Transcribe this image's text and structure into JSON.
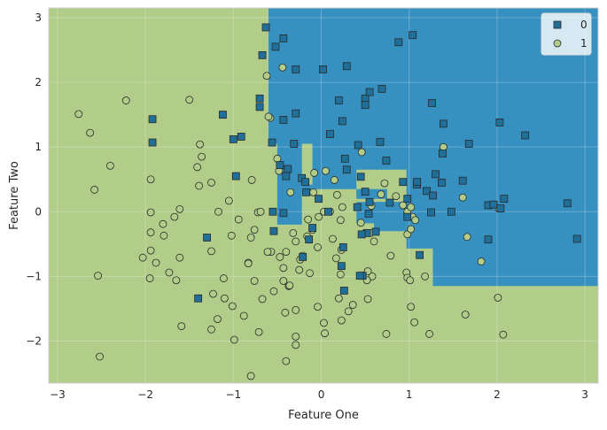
{
  "colors": {
    "class0": "#3690c0",
    "class1": "#b1cd89",
    "marker0": "#1f6f99",
    "marker1": "#b1cd89",
    "edge": "#2a2a2a"
  },
  "chart_data": {
    "type": "scatter",
    "title": "",
    "xlabel": "Feature One",
    "ylabel": "Feature Two",
    "xlim": [
      -3.1,
      3.15
    ],
    "ylim": [
      -2.65,
      3.15
    ],
    "xticks": [
      -3,
      -2,
      -1,
      0,
      1,
      2,
      3
    ],
    "yticks": [
      -2,
      -1,
      0,
      1,
      2,
      3
    ],
    "grid": true,
    "legend_position": "top-right",
    "decision_regions": {
      "background_class": "1",
      "class0_polygons": [
        [
          [
            -0.6,
            3.15
          ],
          [
            3.15,
            3.15
          ],
          [
            3.15,
            -1.15
          ],
          [
            1.27,
            -1.15
          ],
          [
            1.27,
            -0.57
          ],
          [
            0.97,
            -0.57
          ],
          [
            0.97,
            0.65
          ],
          [
            0.4,
            0.65
          ],
          [
            0.4,
            0.35
          ],
          [
            -0.1,
            0.35
          ],
          [
            -0.1,
            1.05
          ],
          [
            -0.6,
            1.05
          ]
        ],
        [
          [
            -0.5,
            1.05
          ],
          [
            -0.22,
            1.05
          ],
          [
            -0.22,
            -0.2
          ],
          [
            -0.5,
            -0.2
          ]
        ],
        [
          [
            -0.22,
            0.42
          ],
          [
            -0.1,
            0.42
          ],
          [
            -0.1,
            0.26
          ],
          [
            -0.22,
            0.26
          ]
        ],
        [
          [
            0.4,
            0.35
          ],
          [
            0.75,
            0.35
          ],
          [
            0.75,
            0.2
          ],
          [
            0.4,
            0.2
          ]
        ],
        [
          [
            0.4,
            0.15
          ],
          [
            0.97,
            0.15
          ],
          [
            0.97,
            -0.18
          ],
          [
            0.4,
            -0.18
          ]
        ],
        [
          [
            0.6,
            0.15
          ],
          [
            0.97,
            0.15
          ],
          [
            0.97,
            -0.3
          ],
          [
            0.6,
            -0.3
          ]
        ]
      ]
    },
    "series": [
      {
        "name": "0",
        "marker": "square",
        "points": [
          [
            -0.63,
            2.85
          ],
          [
            -0.67,
            2.42
          ],
          [
            -0.52,
            2.55
          ],
          [
            -0.43,
            2.68
          ],
          [
            -0.29,
            2.2
          ],
          [
            0.02,
            2.2
          ],
          [
            0.29,
            2.25
          ],
          [
            1.04,
            2.73
          ],
          [
            0.88,
            2.62
          ],
          [
            -0.7,
            1.75
          ],
          [
            -0.7,
            1.62
          ],
          [
            -0.56,
            1.07
          ],
          [
            -0.43,
            1.42
          ],
          [
            -0.29,
            1.52
          ],
          [
            0.2,
            1.72
          ],
          [
            0.5,
            1.75
          ],
          [
            0.55,
            1.85
          ],
          [
            0.69,
            1.9
          ],
          [
            0.5,
            1.65
          ],
          [
            1.26,
            1.68
          ],
          [
            1.39,
            1.36
          ],
          [
            0.24,
            1.4
          ],
          [
            0.1,
            1.2
          ],
          [
            2.03,
            1.38
          ],
          [
            2.32,
            1.18
          ],
          [
            -1.92,
            1.43
          ],
          [
            -1.92,
            1.07
          ],
          [
            -1.12,
            1.5
          ],
          [
            -1.0,
            1.12
          ],
          [
            -0.91,
            1.16
          ],
          [
            -0.31,
            1.05
          ],
          [
            0.27,
            0.82
          ],
          [
            0.67,
            1.08
          ],
          [
            0.74,
            0.79
          ],
          [
            0.42,
            1.03
          ],
          [
            1.38,
            0.9
          ],
          [
            1.68,
            1.05
          ],
          [
            1.61,
            0.48
          ],
          [
            1.3,
            0.58
          ],
          [
            1.37,
            0.45
          ],
          [
            1.2,
            0.32
          ],
          [
            1.27,
            0.25
          ],
          [
            1.09,
            0.42
          ],
          [
            1.09,
            0.46
          ],
          [
            0.93,
            0.46
          ],
          [
            0.29,
            0.65
          ],
          [
            -0.47,
            0.72
          ],
          [
            -0.38,
            0.66
          ],
          [
            -0.4,
            0.55
          ],
          [
            -0.22,
            0.52
          ],
          [
            -0.18,
            0.46
          ],
          [
            -0.17,
            0.3
          ],
          [
            0.45,
            0.54
          ],
          [
            0.5,
            0.31
          ],
          [
            -0.03,
            0.2
          ],
          [
            0.08,
            0.0
          ],
          [
            0.41,
            0.07
          ],
          [
            0.55,
            0.15
          ],
          [
            0.54,
            -0.03
          ],
          [
            0.78,
            0.14
          ],
          [
            0.62,
            -0.31
          ],
          [
            0.52,
            -0.33
          ],
          [
            0.46,
            -0.35
          ],
          [
            0.98,
            0.2
          ],
          [
            0.98,
            -0.08
          ],
          [
            1.12,
            -0.67
          ],
          [
            1.25,
            -0.01
          ],
          [
            1.48,
            0.0
          ],
          [
            -0.97,
            0.55
          ],
          [
            -0.55,
            0.0
          ],
          [
            -0.43,
            -0.02
          ],
          [
            -0.54,
            -0.3
          ],
          [
            -0.14,
            -0.43
          ],
          [
            -0.1,
            -0.25
          ],
          [
            -0.21,
            -0.7
          ],
          [
            0.25,
            -0.55
          ],
          [
            0.23,
            -0.84
          ],
          [
            0.26,
            -1.22
          ],
          [
            0.47,
            -0.99
          ],
          [
            0.44,
            -0.99
          ],
          [
            -1.3,
            -0.4
          ],
          [
            -1.4,
            -1.34
          ],
          [
            1.9,
            0.1
          ],
          [
            1.96,
            0.11
          ],
          [
            2.08,
            0.2
          ],
          [
            1.9,
            -0.43
          ],
          [
            2.8,
            0.13
          ],
          [
            2.91,
            -0.42
          ],
          [
            2.04,
            0.05
          ]
        ]
      },
      {
        "name": "1",
        "marker": "circle",
        "points": [
          [
            -0.44,
            2.23
          ],
          [
            -0.62,
            2.1
          ],
          [
            -0.58,
            1.45
          ],
          [
            -0.6,
            1.47
          ],
          [
            -2.76,
            1.51
          ],
          [
            -2.63,
            1.22
          ],
          [
            -2.22,
            1.72
          ],
          [
            -2.58,
            0.34
          ],
          [
            -2.4,
            0.71
          ],
          [
            -1.94,
            0.5
          ],
          [
            -1.38,
            1.04
          ],
          [
            -1.36,
            0.85
          ],
          [
            -1.41,
            0.69
          ],
          [
            -1.39,
            0.4
          ],
          [
            -1.25,
            0.45
          ],
          [
            -0.79,
            0.49
          ],
          [
            -0.5,
            0.82
          ],
          [
            -0.48,
            0.63
          ],
          [
            -1.5,
            1.73
          ],
          [
            -1.05,
            0.17
          ],
          [
            -1.17,
            0.0
          ],
          [
            -1.61,
            0.04
          ],
          [
            -1.67,
            -0.08
          ],
          [
            -1.8,
            -0.19
          ],
          [
            -1.79,
            -0.37
          ],
          [
            -1.61,
            -0.71
          ],
          [
            -1.65,
            -1.06
          ],
          [
            -1.94,
            -0.01
          ],
          [
            -1.94,
            -0.32
          ],
          [
            -1.94,
            -0.6
          ],
          [
            -2.03,
            -0.71
          ],
          [
            -1.95,
            -1.03
          ],
          [
            -1.88,
            -0.79
          ],
          [
            -1.73,
            -0.94
          ],
          [
            -1.25,
            -0.61
          ],
          [
            -1.02,
            -0.37
          ],
          [
            -0.83,
            -0.79
          ],
          [
            -0.76,
            -1.07
          ],
          [
            -0.76,
            -0.28
          ],
          [
            -0.72,
            -0.01
          ],
          [
            -0.57,
            -0.62
          ],
          [
            -0.61,
            -0.62
          ],
          [
            -0.47,
            -0.7
          ],
          [
            -0.43,
            -0.87
          ],
          [
            -0.4,
            -0.62
          ],
          [
            -0.43,
            -1.07
          ],
          [
            -0.37,
            -1.15
          ],
          [
            -0.36,
            -1.14
          ],
          [
            -0.25,
            -0.9
          ],
          [
            -0.13,
            -0.95
          ],
          [
            -0.16,
            -0.38
          ],
          [
            -0.29,
            -0.46
          ],
          [
            -0.21,
            -0.68
          ],
          [
            -0.32,
            -0.33
          ],
          [
            -0.15,
            -0.12
          ],
          [
            -0.03,
            -0.08
          ],
          [
            0.03,
            0.0
          ],
          [
            0.1,
            0.0
          ],
          [
            0.13,
            -0.42
          ],
          [
            0.17,
            -0.72
          ],
          [
            0.23,
            -0.59
          ],
          [
            0.22,
            -0.97
          ],
          [
            0.2,
            -1.34
          ],
          [
            0.23,
            -1.68
          ],
          [
            0.04,
            -1.88
          ],
          [
            0.31,
            -1.54
          ],
          [
            0.36,
            -1.44
          ],
          [
            0.58,
            -1.0
          ],
          [
            0.53,
            -0.92
          ],
          [
            0.52,
            -1.06
          ],
          [
            0.53,
            -1.35
          ],
          [
            0.74,
            -1.89
          ],
          [
            0.79,
            -0.68
          ],
          [
            0.56,
            -0.33
          ],
          [
            0.57,
            0.09
          ],
          [
            0.72,
            0.44
          ],
          [
            0.68,
            0.27
          ],
          [
            0.85,
            0.24
          ],
          [
            0.6,
            -0.46
          ],
          [
            0.45,
            -0.17
          ],
          [
            0.93,
            0.1
          ],
          [
            0.98,
            0.0
          ],
          [
            1.04,
            -0.08
          ],
          [
            0.98,
            -0.35
          ],
          [
            1.02,
            -0.27
          ],
          [
            0.97,
            -0.94
          ],
          [
            0.98,
            -1.02
          ],
          [
            1.01,
            -1.06
          ],
          [
            1.02,
            -1.47
          ],
          [
            1.06,
            -1.71
          ],
          [
            1.23,
            -1.89
          ],
          [
            1.18,
            -1.0
          ],
          [
            1.39,
            1.0
          ],
          [
            1.61,
            0.22
          ],
          [
            1.66,
            -0.39
          ],
          [
            1.82,
            -0.77
          ],
          [
            1.64,
            -1.59
          ],
          [
            2.01,
            -1.33
          ],
          [
            2.07,
            -1.9
          ],
          [
            0.46,
            0.92
          ],
          [
            -0.08,
            0.6
          ],
          [
            0.15,
            0.49
          ],
          [
            0.18,
            0.26
          ],
          [
            0.05,
            0.63
          ],
          [
            -0.09,
            0.3
          ],
          [
            -0.04,
            -0.55
          ],
          [
            -0.29,
            -1.52
          ],
          [
            -0.41,
            -1.56
          ],
          [
            -0.29,
            -1.93
          ],
          [
            -0.29,
            -2.06
          ],
          [
            -0.4,
            -2.31
          ],
          [
            -0.8,
            -2.54
          ],
          [
            -0.71,
            -1.86
          ],
          [
            -0.54,
            -1.23
          ],
          [
            -0.67,
            -1.35
          ],
          [
            -0.88,
            -1.61
          ],
          [
            -0.99,
            -1.98
          ],
          [
            -1.1,
            -1.34
          ],
          [
            -1.01,
            -1.46
          ],
          [
            -1.23,
            -1.27
          ],
          [
            -1.18,
            -1.66
          ],
          [
            -1.25,
            -1.82
          ],
          [
            -1.59,
            -1.77
          ],
          [
            -2.54,
            -0.99
          ],
          [
            -2.52,
            -2.24
          ],
          [
            -1.11,
            -1.03
          ],
          [
            -0.69,
            0.0
          ],
          [
            -0.8,
            -0.4
          ],
          [
            -0.94,
            -0.12
          ],
          [
            -0.83,
            -0.8
          ],
          [
            -0.24,
            -0.74
          ],
          [
            -0.04,
            -1.47
          ],
          [
            0.03,
            -1.72
          ],
          [
            0.24,
            0.07
          ],
          [
            0.22,
            -0.13
          ],
          [
            -0.1,
            -0.28
          ],
          [
            1.02,
            0.07
          ],
          [
            1.07,
            -0.13
          ],
          [
            -0.35,
            0.3
          ],
          [
            2.02,
            0.05
          ]
        ]
      }
    ]
  }
}
